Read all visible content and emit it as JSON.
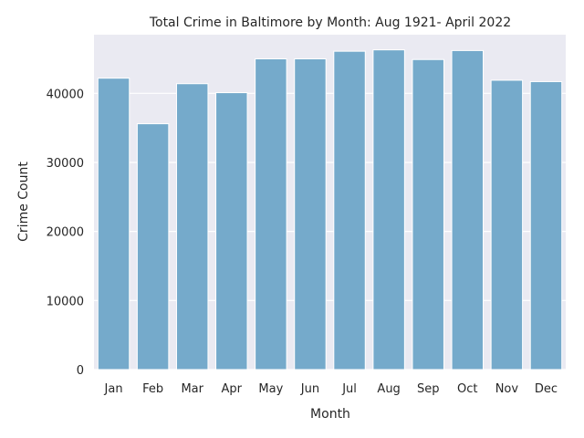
{
  "chart_data": {
    "type": "bar",
    "title": "Total Crime in Baltimore by Month: Aug 1921- April 2022",
    "xlabel": "Month",
    "ylabel": "Crime Count",
    "categories": [
      "Jan",
      "Feb",
      "Mar",
      "Apr",
      "May",
      "Jun",
      "Jul",
      "Aug",
      "Sep",
      "Oct",
      "Nov",
      "Dec"
    ],
    "values": [
      42200,
      35600,
      41400,
      40100,
      45000,
      45000,
      46100,
      46300,
      44900,
      46200,
      41900,
      41700
    ],
    "ylim": [
      0,
      48500
    ],
    "yticks": [
      0,
      10000,
      20000,
      30000,
      40000
    ],
    "grid": true,
    "legend": "none",
    "bar_color": "#75aacb",
    "background_color": "#eaeaf2"
  }
}
